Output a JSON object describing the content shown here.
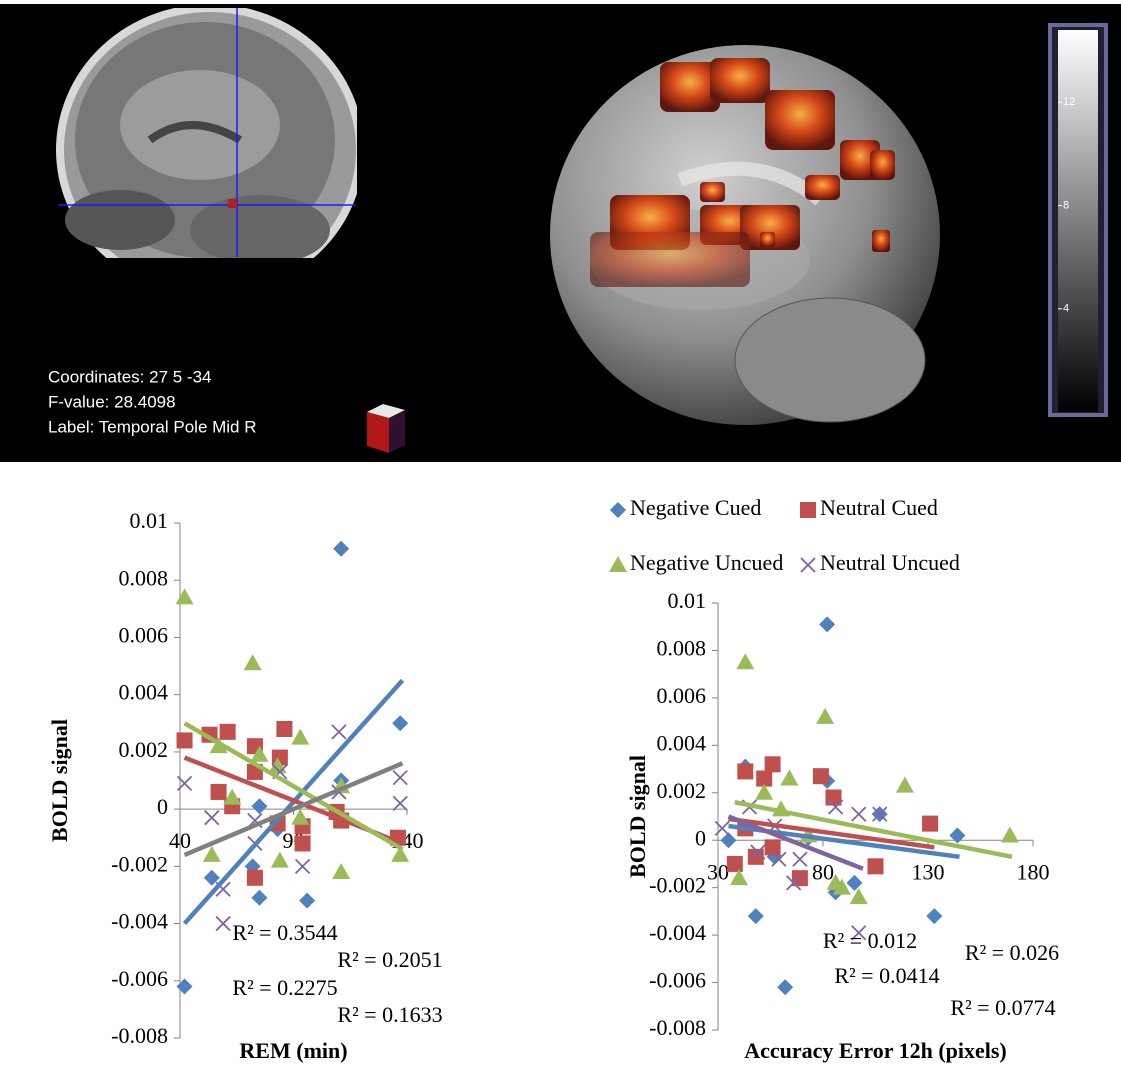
{
  "viewer": {
    "coordinates": "Coordinates: 27 5 -34",
    "f_value": "F-value: 28.4098",
    "label": "Label: Temporal Pole Mid R",
    "colorbar": {
      "lim": [
        0,
        14.8
      ],
      "ticks": [
        4,
        8,
        12
      ]
    }
  },
  "chart_data": [
    {
      "type": "scatter",
      "x_label": "REM (min)",
      "y_label": "BOLD signal",
      "xlim": [
        40,
        140
      ],
      "xticks": [
        40,
        90,
        140
      ],
      "ylim": [
        -0.008,
        0.01
      ],
      "yticks": [
        -0.008,
        -0.006,
        -0.004,
        -0.002,
        0,
        0.002,
        0.004,
        0.006,
        0.008,
        0.01
      ],
      "series": [
        {
          "marker": "diamond",
          "color": "#4f81bd",
          "x": [
            42,
            54,
            72,
            75,
            75,
            83,
            96,
            111,
            111,
            137
          ],
          "values": [
            -0.0062,
            -0.0024,
            -0.002,
            -0.0031,
            0.0001,
            -0.0007,
            -0.0032,
            0.0091,
            0.001,
            0.003
          ],
          "trend": {
            "color": "#4f81bd",
            "x": [
              42,
              138
            ],
            "values": [
              -0.004,
              0.0045
            ]
          },
          "r2": "R² = 0.3544"
        },
        {
          "marker": "square",
          "color": "#c0504d",
          "x": [
            42,
            53,
            57,
            61,
            63,
            73,
            73,
            73,
            84,
            83,
            86,
            94,
            94,
            109,
            111,
            136
          ],
          "values": [
            0.0024,
            0.0026,
            0.0006,
            0.0027,
            0.0001,
            0.0022,
            0.0013,
            -0.0024,
            0.0018,
            -0.0005,
            0.0028,
            -0.0006,
            -0.0012,
            -0.0001,
            -0.0004,
            -0.001
          ],
          "trend": {
            "color": "#c0504d",
            "x": [
              42,
              138
            ],
            "values": [
              0.0018,
              -0.0012
            ]
          },
          "r2": "R² = 0.2051"
        },
        {
          "marker": "triangle",
          "color": "#9bbb59",
          "x": [
            42,
            54,
            57,
            63,
            72,
            75,
            83,
            84,
            93,
            93,
            111,
            111,
            137
          ],
          "values": [
            0.0074,
            -0.0016,
            0.0022,
            0.0004,
            0.0051,
            0.0019,
            0.0015,
            -0.0018,
            0.0025,
            -0.0003,
            0.0008,
            -0.0022,
            -0.0016
          ],
          "trend": {
            "color": "#9bbb59",
            "x": [
              42,
              138
            ],
            "values": [
              0.003,
              -0.0014
            ]
          },
          "r2": "R² = 0.2275"
        },
        {
          "marker": "x",
          "color": "#8064a2",
          "x": [
            42,
            54,
            59,
            59,
            73,
            73,
            84,
            94,
            110,
            110,
            137,
            137
          ],
          "values": [
            0.0009,
            -0.0003,
            -0.0028,
            -0.004,
            -0.0004,
            -0.0012,
            0.0013,
            -0.002,
            0.0027,
            0.0006,
            0.0011,
            0.0002
          ],
          "trend": {
            "color": "#7f7f7f",
            "x": [
              42,
              138
            ],
            "values": [
              -0.0016,
              0.0016
            ]
          },
          "r2": "R² = 0.1633"
        }
      ]
    },
    {
      "type": "scatter",
      "x_label": "Accuracy Error 12h (pixels)",
      "y_label": "BOLD signal",
      "xlim": [
        30,
        180
      ],
      "xticks": [
        30,
        80,
        130,
        180
      ],
      "ylim": [
        -0.008,
        0.01
      ],
      "yticks": [
        -0.008,
        -0.006,
        -0.004,
        -0.002,
        0,
        0.002,
        0.004,
        0.006,
        0.008,
        0.01
      ],
      "series": [
        {
          "name": "Negative Cued",
          "marker": "diamond",
          "color": "#4f81bd",
          "x": [
            35,
            43,
            48,
            57,
            62,
            73,
            82,
            82,
            86,
            95,
            107,
            133,
            144
          ],
          "values": [
            0,
            0.0031,
            -0.0032,
            -0.0007,
            -0.0062,
            0.0001,
            0.0091,
            0.0025,
            -0.0022,
            -0.0018,
            0.0011,
            -0.0032,
            0.0002
          ],
          "trend": {
            "color": "#4f81bd",
            "x": [
              35,
              145
            ],
            "values": [
              0.0006,
              -0.0007
            ]
          },
          "r2": "R² = 0.012"
        },
        {
          "name": "Neutral Cued",
          "marker": "square",
          "color": "#c0504d",
          "x": [
            38,
            43,
            43,
            48,
            52,
            56,
            56,
            69,
            79,
            85,
            105,
            131
          ],
          "values": [
            -0.001,
            0.0005,
            0.0029,
            -0.0007,
            0.0026,
            -0.0003,
            0.0032,
            -0.0016,
            0.0027,
            0.0018,
            -0.0011,
            0.0007
          ],
          "trend": {
            "color": "#c0504d",
            "x": [
              35,
              133
            ],
            "values": [
              0.0009,
              -0.0003
            ]
          },
          "r2": "R² = 0.026"
        },
        {
          "name": "Negative Uncued",
          "marker": "triangle",
          "color": "#9bbb59",
          "x": [
            40,
            43,
            52,
            60,
            64,
            73,
            81,
            86,
            89,
            97,
            119,
            169
          ],
          "values": [
            -0.0016,
            0.0075,
            0.002,
            0.0013,
            0.0026,
            0.0002,
            0.0052,
            -0.0018,
            -0.002,
            -0.0024,
            0.0023,
            0.0002
          ],
          "trend": {
            "color": "#9bbb59",
            "x": [
              38,
              170
            ],
            "values": [
              0.0016,
              -0.0007
            ]
          },
          "r2": "R² = 0.0414"
        },
        {
          "name": "Neutral Uncued",
          "marker": "x",
          "color": "#8064a2",
          "x": [
            32,
            45,
            49,
            57,
            59,
            66,
            69,
            86,
            97,
            97,
            107
          ],
          "values": [
            0.0005,
            0.0014,
            -0.0005,
            0.0006,
            -0.0008,
            -0.0018,
            -0.0008,
            0.0014,
            0.0011,
            -0.0039,
            0.0011
          ],
          "trend": {
            "color": "#8064a2",
            "x": [
              35,
              99
            ],
            "values": [
              0.001,
              -0.0012
            ]
          },
          "r2": "R² = 0.0774"
        }
      ]
    }
  ]
}
